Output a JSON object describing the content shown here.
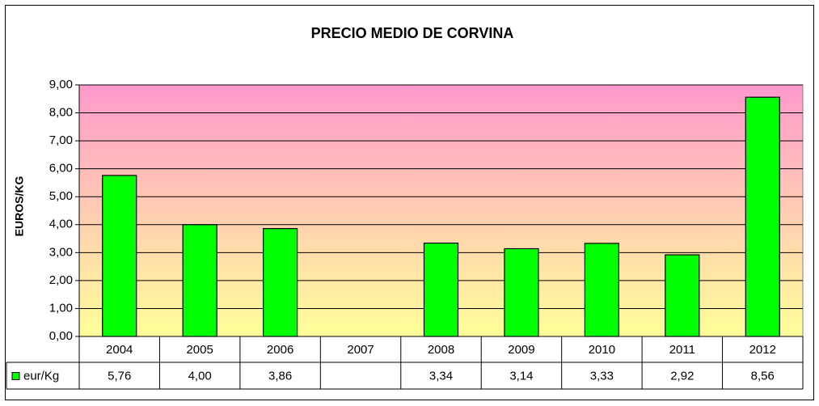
{
  "chart_data": {
    "type": "bar",
    "title": "PRECIO MEDIO DE CORVINA",
    "y_label": "EUROS/KG",
    "categories": [
      "2004",
      "2005",
      "2006",
      "2007",
      "2008",
      "2009",
      "2010",
      "2011",
      "2012"
    ],
    "series": [
      {
        "name": "eur/Kg",
        "color": "#00ff00",
        "values": [
          5.76,
          4.0,
          3.86,
          null,
          3.34,
          3.14,
          3.33,
          2.92,
          8.56
        ],
        "value_labels": [
          "5,76",
          "4,00",
          "3,86",
          null,
          "3,34",
          "3,14",
          "3,33",
          "2,92",
          "8,56"
        ]
      }
    ],
    "ylim": [
      0,
      9
    ],
    "yticks": [
      {
        "value": 0,
        "label": "0,00"
      },
      {
        "value": 1,
        "label": "1,00"
      },
      {
        "value": 2,
        "label": "2,00"
      },
      {
        "value": 3,
        "label": "3,00"
      },
      {
        "value": 4,
        "label": "4,00"
      },
      {
        "value": 5,
        "label": "5,00"
      },
      {
        "value": 6,
        "label": "6,00"
      },
      {
        "value": 7,
        "label": "7,00"
      },
      {
        "value": 8,
        "label": "8,00"
      },
      {
        "value": 9,
        "label": "9,00"
      }
    ],
    "grid": true,
    "data_table": true
  }
}
